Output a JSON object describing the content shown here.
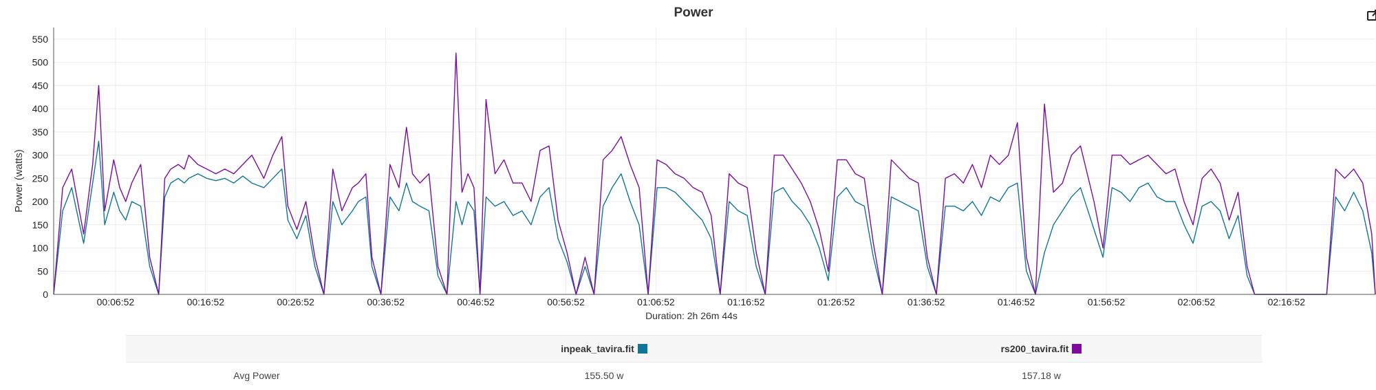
{
  "chart_data": {
    "type": "line",
    "title": "Power",
    "ylabel": "Power (watts)",
    "xlabel": "Duration: 2h 26m 44s",
    "ylim": [
      0,
      575
    ],
    "xlim_seconds": [
      0,
      8804
    ],
    "yticks": [
      0,
      50,
      100,
      150,
      200,
      250,
      300,
      350,
      400,
      450,
      500,
      550
    ],
    "xtick_labels": [
      "00:06:52",
      "00:16:52",
      "00:26:52",
      "00:36:52",
      "00:46:52",
      "00:56:52",
      "01:06:52",
      "01:16:52",
      "01:26:52",
      "01:36:52",
      "01:46:52",
      "01:56:52",
      "02:06:52",
      "02:16:52"
    ],
    "xtick_seconds": [
      412,
      1012,
      1612,
      2212,
      2812,
      3412,
      4012,
      4612,
      5212,
      5812,
      6412,
      7012,
      7612,
      8212
    ],
    "grid": true,
    "series": [
      {
        "name": "inpeak_tavira.fit",
        "color": "#0f7599",
        "x": [
          0,
          60,
          120,
          200,
          260,
          300,
          340,
          400,
          440,
          480,
          520,
          580,
          640,
          700,
          740,
          780,
          830,
          870,
          900,
          960,
          1020,
          1080,
          1140,
          1200,
          1260,
          1320,
          1400,
          1460,
          1520,
          1560,
          1620,
          1680,
          1740,
          1800,
          1860,
          1920,
          1990,
          2030,
          2080,
          2120,
          2180,
          2240,
          2300,
          2350,
          2390,
          2440,
          2500,
          2560,
          2620,
          2680,
          2720,
          2760,
          2800,
          2840,
          2880,
          2940,
          3000,
          3060,
          3120,
          3180,
          3240,
          3300,
          3360,
          3420,
          3480,
          3540,
          3600,
          3660,
          3720,
          3780,
          3840,
          3900,
          3960,
          4020,
          4080,
          4140,
          4200,
          4260,
          4320,
          4380,
          4440,
          4500,
          4560,
          4620,
          4680,
          4740,
          4800,
          4860,
          4920,
          4980,
          5040,
          5100,
          5160,
          5220,
          5280,
          5340,
          5400,
          5460,
          5520,
          5580,
          5640,
          5700,
          5760,
          5820,
          5880,
          5940,
          6000,
          6060,
          6120,
          6180,
          6240,
          6300,
          6360,
          6420,
          6480,
          6540,
          6600,
          6660,
          6720,
          6780,
          6840,
          6930,
          6990,
          7050,
          7110,
          7170,
          7230,
          7290,
          7350,
          7410,
          7470,
          7530,
          7590,
          7650,
          7710,
          7770,
          7830,
          7890,
          7950,
          8000,
          8150,
          8300,
          8480,
          8540,
          8600,
          8660,
          8720,
          8780,
          8804
        ],
        "values": [
          0,
          180,
          230,
          110,
          240,
          330,
          150,
          220,
          180,
          160,
          200,
          190,
          60,
          0,
          210,
          240,
          250,
          240,
          250,
          260,
          250,
          245,
          250,
          240,
          255,
          240,
          230,
          250,
          270,
          160,
          120,
          170,
          60,
          0,
          200,
          150,
          180,
          200,
          210,
          60,
          0,
          210,
          180,
          240,
          200,
          190,
          180,
          40,
          0,
          200,
          150,
          200,
          180,
          0,
          210,
          190,
          200,
          170,
          180,
          150,
          210,
          230,
          120,
          70,
          0,
          60,
          0,
          190,
          230,
          260,
          200,
          150,
          0,
          230,
          230,
          220,
          200,
          180,
          160,
          120,
          0,
          200,
          180,
          170,
          60,
          0,
          220,
          230,
          200,
          180,
          150,
          100,
          30,
          210,
          230,
          200,
          190,
          80,
          0,
          210,
          200,
          190,
          180,
          60,
          0,
          190,
          190,
          180,
          200,
          170,
          210,
          200,
          230,
          240,
          50,
          0,
          90,
          150,
          180,
          210,
          230,
          140,
          80,
          230,
          220,
          200,
          230,
          240,
          210,
          200,
          200,
          150,
          110,
          190,
          200,
          180,
          120,
          170,
          40,
          0,
          0,
          0,
          0,
          210,
          180,
          220,
          180,
          90,
          0
        ]
      },
      {
        "name": "rs200_tavira.fit",
        "color": "#7b0c9e",
        "x": [
          0,
          60,
          120,
          200,
          260,
          300,
          340,
          400,
          440,
          480,
          520,
          580,
          640,
          700,
          740,
          780,
          830,
          870,
          900,
          960,
          1020,
          1080,
          1140,
          1200,
          1260,
          1320,
          1400,
          1460,
          1520,
          1560,
          1620,
          1680,
          1740,
          1800,
          1860,
          1920,
          1990,
          2030,
          2080,
          2120,
          2180,
          2240,
          2300,
          2350,
          2390,
          2440,
          2500,
          2560,
          2620,
          2680,
          2720,
          2760,
          2800,
          2840,
          2880,
          2940,
          3000,
          3060,
          3120,
          3180,
          3240,
          3300,
          3360,
          3420,
          3480,
          3540,
          3600,
          3660,
          3720,
          3780,
          3840,
          3900,
          3960,
          4020,
          4080,
          4140,
          4200,
          4260,
          4320,
          4380,
          4440,
          4500,
          4560,
          4620,
          4680,
          4740,
          4800,
          4860,
          4920,
          4980,
          5040,
          5100,
          5160,
          5220,
          5280,
          5340,
          5400,
          5460,
          5520,
          5580,
          5640,
          5700,
          5760,
          5820,
          5880,
          5940,
          6000,
          6060,
          6120,
          6180,
          6240,
          6300,
          6360,
          6420,
          6480,
          6540,
          6600,
          6660,
          6720,
          6780,
          6840,
          6930,
          6990,
          7050,
          7110,
          7170,
          7230,
          7290,
          7350,
          7410,
          7470,
          7530,
          7590,
          7650,
          7710,
          7770,
          7830,
          7890,
          7950,
          8000,
          8150,
          8300,
          8480,
          8540,
          8600,
          8660,
          8720,
          8780,
          8804
        ],
        "values": [
          0,
          230,
          270,
          130,
          280,
          450,
          180,
          290,
          230,
          200,
          240,
          280,
          80,
          0,
          250,
          270,
          280,
          270,
          300,
          280,
          270,
          260,
          270,
          260,
          280,
          300,
          250,
          300,
          340,
          190,
          140,
          200,
          80,
          0,
          270,
          180,
          230,
          240,
          260,
          80,
          0,
          280,
          230,
          360,
          260,
          240,
          260,
          60,
          0,
          520,
          220,
          260,
          230,
          0,
          420,
          260,
          290,
          240,
          240,
          200,
          310,
          320,
          160,
          90,
          0,
          80,
          0,
          290,
          310,
          340,
          280,
          230,
          0,
          290,
          280,
          260,
          250,
          230,
          220,
          170,
          0,
          260,
          240,
          230,
          90,
          0,
          300,
          300,
          270,
          240,
          200,
          140,
          50,
          290,
          290,
          260,
          250,
          110,
          0,
          290,
          270,
          250,
          240,
          80,
          0,
          250,
          260,
          240,
          280,
          230,
          300,
          280,
          300,
          370,
          80,
          0,
          410,
          220,
          240,
          300,
          320,
          200,
          100,
          300,
          300,
          280,
          290,
          300,
          280,
          260,
          270,
          200,
          150,
          250,
          270,
          240,
          160,
          220,
          60,
          0,
          0,
          0,
          0,
          270,
          250,
          270,
          240,
          130,
          0
        ]
      }
    ]
  },
  "table": {
    "headers": [
      "",
      "inpeak_tavira.fit",
      "rs200_tavira.fit"
    ],
    "rows": [
      {
        "label": "Avg Power",
        "values": [
          "155.50 w",
          "157.18 w"
        ]
      }
    ]
  }
}
